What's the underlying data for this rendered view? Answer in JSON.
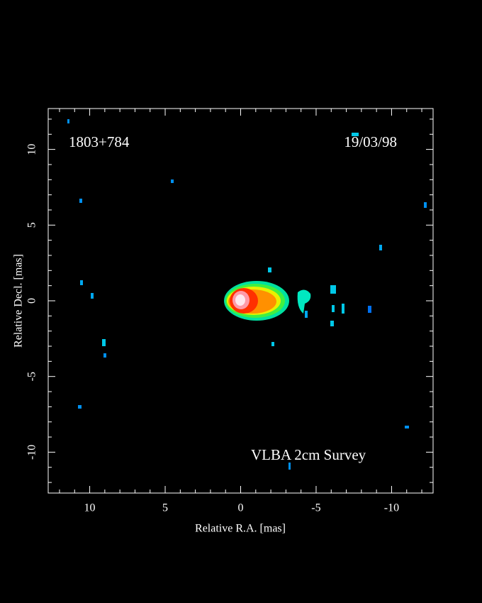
{
  "chart_data": {
    "type": "image",
    "annotations": [
      "1803+784",
      "19/03/98",
      "VLBA 2cm Survey"
    ],
    "x_label": "Relative R.A. [mas]",
    "y_label": "Relative Decl. [mas]",
    "xlim": [
      12.75,
      -12.75
    ],
    "ylim": [
      -12.7,
      12.7
    ],
    "xticks": [
      10,
      5,
      0,
      -5,
      -10
    ],
    "yticks": [
      -10,
      -5,
      0,
      5,
      10
    ],
    "xminorticks": [
      12,
      11,
      9,
      8,
      7,
      6,
      4,
      3,
      2,
      1,
      -1,
      -2,
      -3,
      -4,
      -6,
      -7,
      -8,
      -9,
      -11,
      -12
    ],
    "yminorticks": [
      -12,
      -11,
      -9,
      -8,
      -7,
      -6,
      -4,
      -3,
      -2,
      -1,
      1,
      2,
      3,
      4,
      6,
      7,
      8,
      9,
      11,
      12
    ]
  }
}
